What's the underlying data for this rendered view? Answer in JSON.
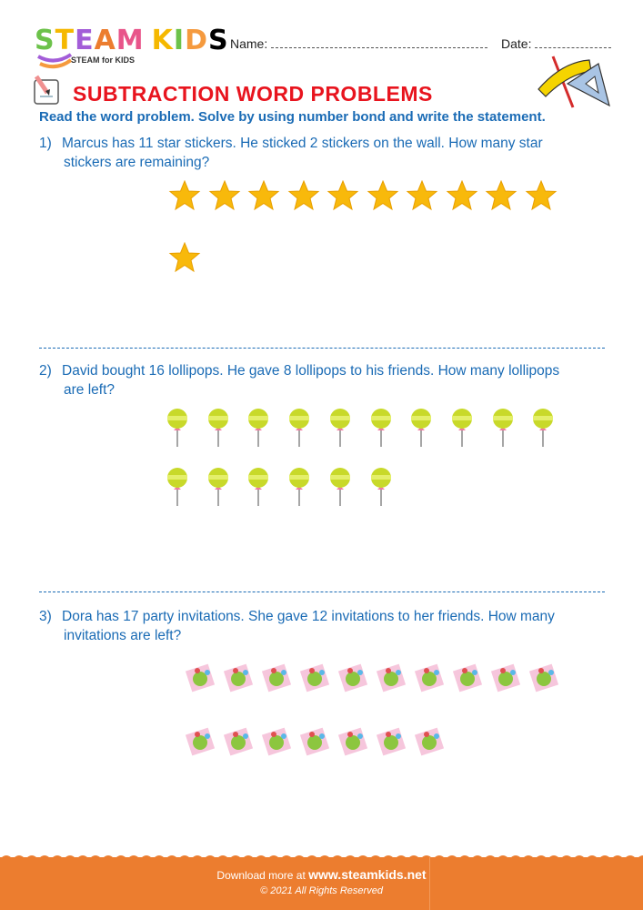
{
  "header": {
    "logo": {
      "text": "STEAM KIDS",
      "subtitle": "STEAM for KIDS",
      "letter_colors": [
        "#6cc24a",
        "#f5b800",
        "#a35dd8",
        "#ec7d2f",
        "#e8558a",
        "#a35dd8",
        "#f5b800",
        "#6cc24a",
        "#f59a3e"
      ]
    },
    "name_label": "Name:",
    "date_label": "Date:"
  },
  "title": "SUBTRACTION WORD PROBLEMS",
  "instruction": "Read the word problem. Solve by using number bond and write the statement.",
  "questions": [
    {
      "number": "1)",
      "line1": "Marcus has 11 star stickers. He sticked 2 stickers on the wall. How many star",
      "line2": "stickers are remaining?",
      "icon": "star-icon",
      "count": 11
    },
    {
      "number": "2)",
      "line1": "David bought 16 lollipops. He gave 8 lollipops to his friends. How many lollipops",
      "line2": "are left?",
      "icon": "lollipop-icon",
      "count": 16
    },
    {
      "number": "3)",
      "line1": "Dora has 17 party invitations. She gave 12 invitations to her friends. How many",
      "line2": "invitations are left?",
      "icon": "invitation-icon",
      "count": 17
    }
  ],
  "footer": {
    "download_text": "Download more at",
    "site": "www.steamkids.net",
    "copyright": "© 2021 All Rights Reserved"
  },
  "colors": {
    "title": "#e8141e",
    "text": "#1a6bb5",
    "footer": "#ec7d2f",
    "star": "#f8b90b",
    "lollipop": "#c8d92a"
  }
}
